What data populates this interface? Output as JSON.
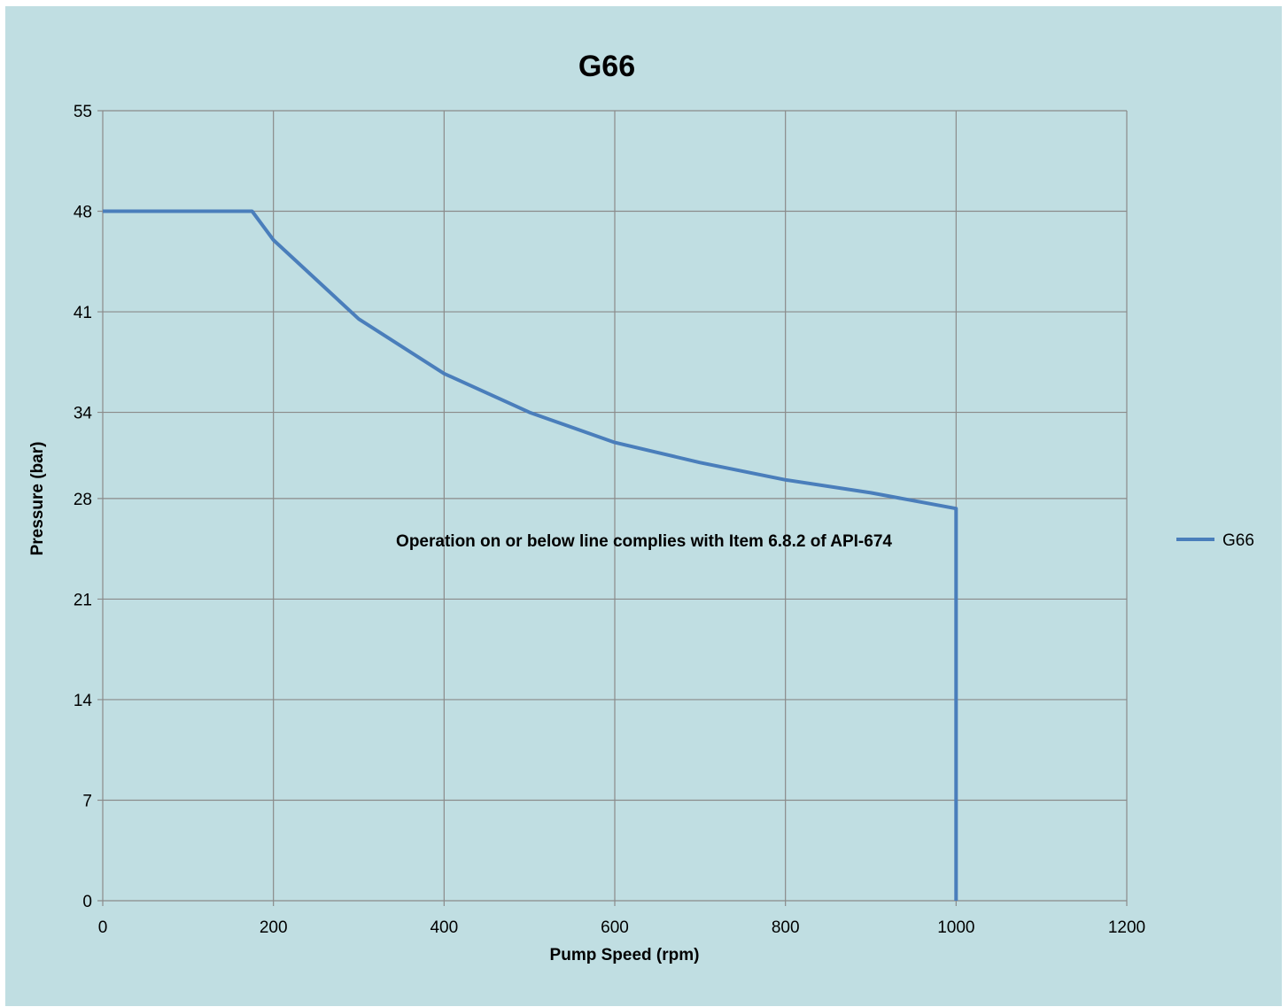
{
  "chart_data": {
    "type": "line",
    "title": "G66",
    "xlabel": "Pump Speed (rpm)",
    "ylabel": "Pressure (bar)",
    "xlim": [
      0,
      1200
    ],
    "ylim": [
      0,
      55
    ],
    "x_ticks": [
      0,
      200,
      400,
      600,
      800,
      1000,
      1200
    ],
    "y_ticks": [
      0,
      7,
      14,
      21,
      28,
      34,
      41,
      48,
      55
    ],
    "grid": true,
    "legend_position": "right",
    "annotation": "Operation on or below line complies with Item 6.8.2 of API-674",
    "series": [
      {
        "name": "G66",
        "color": "#4a7ebb",
        "points": [
          [
            0,
            48
          ],
          [
            175,
            48
          ],
          [
            200,
            46
          ],
          [
            300,
            40.5
          ],
          [
            400,
            36.7
          ],
          [
            500,
            34
          ],
          [
            600,
            31.9
          ],
          [
            700,
            30.5
          ],
          [
            800,
            29.3
          ],
          [
            900,
            28.4
          ],
          [
            1000,
            27.3
          ],
          [
            1000,
            0
          ]
        ]
      }
    ]
  }
}
